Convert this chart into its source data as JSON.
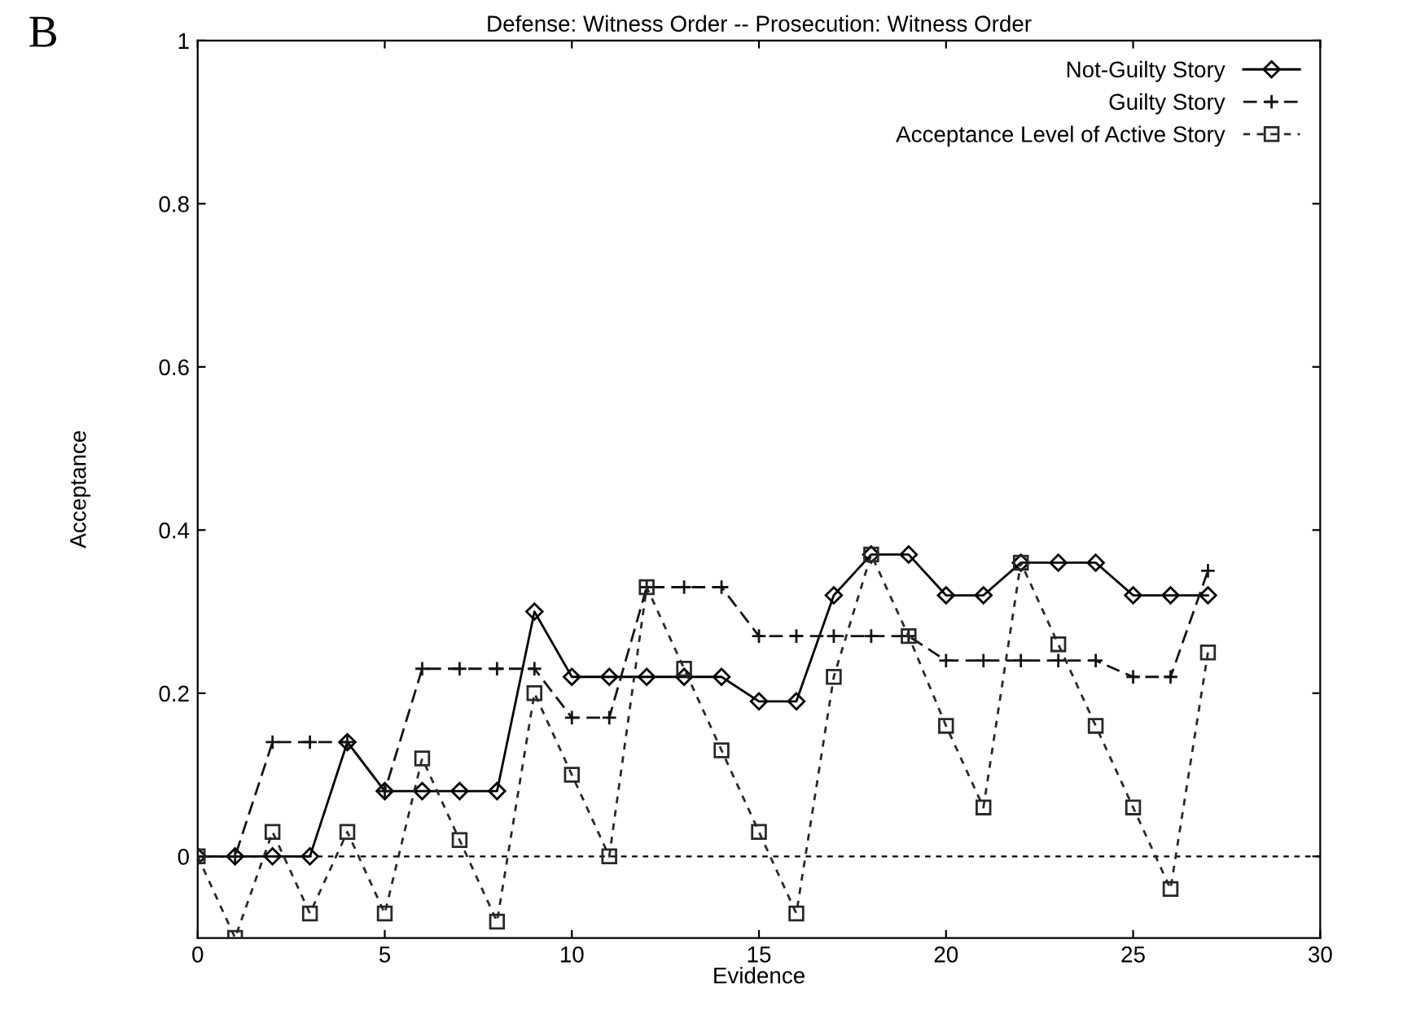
{
  "chart_data": {
    "type": "line",
    "title": "Defense: Witness Order -- Prosecution: Witness Order",
    "xlabel": "Evidence",
    "ylabel": "Acceptance",
    "annotations": [
      "B"
    ],
    "x": [
      0,
      1,
      2,
      3,
      4,
      5,
      6,
      7,
      8,
      9,
      10,
      11,
      12,
      13,
      14,
      15,
      16,
      17,
      18,
      19,
      20,
      21,
      22,
      23,
      24,
      25,
      26,
      27
    ],
    "series": [
      {
        "name": "Not-Guilty Story",
        "color": "#000000",
        "marker": "diamond",
        "line_style": "solid",
        "values": [
          0,
          0,
          0,
          0,
          0.14,
          0.08,
          0.08,
          0.08,
          0.08,
          0.3,
          0.22,
          0.22,
          0.22,
          0.22,
          0.22,
          0.19,
          0.19,
          0.32,
          0.37,
          0.37,
          0.32,
          0.32,
          0.36,
          0.36,
          0.36,
          0.32,
          0.32,
          0.32
        ]
      },
      {
        "name": "Guilty Story",
        "color": "#141414",
        "marker": "cross",
        "line_style": "dashed",
        "values": [
          0,
          0,
          0.14,
          0.14,
          0.14,
          0.08,
          0.23,
          0.23,
          0.23,
          0.23,
          0.17,
          0.17,
          0.33,
          0.33,
          0.33,
          0.27,
          0.27,
          0.27,
          0.27,
          0.27,
          0.24,
          0.24,
          0.24,
          0.24,
          0.24,
          0.22,
          0.22,
          0.35
        ]
      },
      {
        "name": "Acceptance Level of Active Story",
        "color": "#282828",
        "marker": "square",
        "line_style": "dotted",
        "values": [
          0,
          -0.1,
          0.03,
          -0.07,
          0.03,
          -0.07,
          0.12,
          0.02,
          -0.08,
          0.2,
          0.1,
          0,
          0.33,
          0.23,
          0.13,
          0.03,
          -0.07,
          0.22,
          0.37,
          0.27,
          0.16,
          0.06,
          0.36,
          0.26,
          0.16,
          0.06,
          -0.04,
          0.25
        ]
      }
    ],
    "xlim": [
      0,
      30
    ],
    "xticks": [
      0,
      5,
      10,
      15,
      20,
      25,
      30
    ],
    "ylim": [
      -0.1,
      1
    ],
    "yticks": [
      0,
      0.2,
      0.4,
      0.6,
      0.8,
      1
    ],
    "ref_lines": [
      {
        "axis": "y",
        "value": 0,
        "line_style": "dotted",
        "color": "#000000"
      }
    ],
    "grid": false,
    "legend": "top right"
  }
}
